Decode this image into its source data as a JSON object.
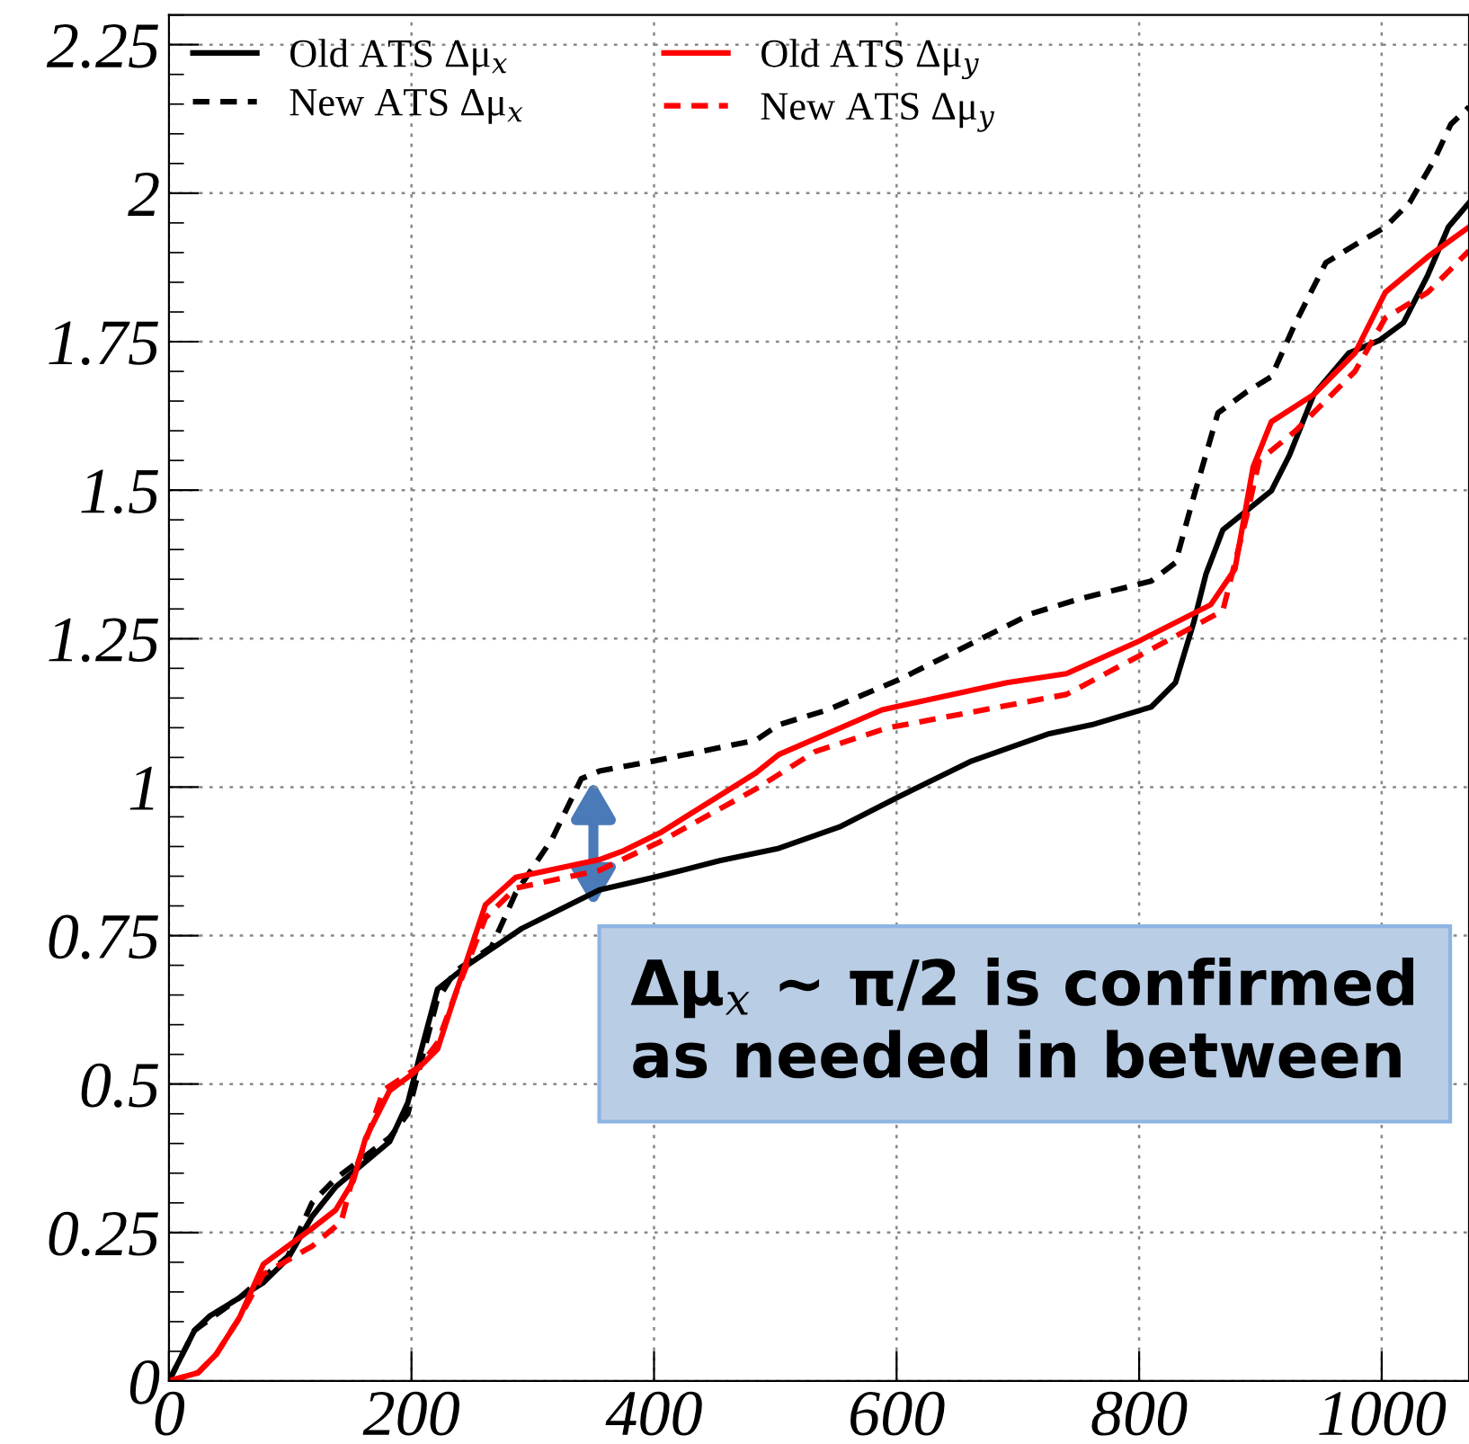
{
  "chart_data": {
    "type": "line",
    "xlim": [
      0,
      1072
    ],
    "ylim": [
      0,
      2.3
    ],
    "xticks": [
      0,
      200,
      400,
      600,
      800,
      1000
    ],
    "yticks": [
      0,
      0.25,
      0.5,
      0.75,
      1,
      1.25,
      1.5,
      1.75,
      2,
      2.25
    ],
    "grid": true,
    "legend": "top left",
    "marker": "none",
    "annotations": [
      "Δμ$_{x}$ ~ π/2 is confirmed\nas needed in between"
    ],
    "series": [
      {
        "name": "Old ATS Δμ$_{x}$",
        "color": "#000000",
        "line_style": "solid",
        "x": [
          0,
          21,
          34,
          58,
          78,
          98,
          118,
          137.5,
          182,
          197,
          207,
          221.5,
          246,
          291,
          355,
          400,
          454,
          503,
          553,
          602,
          662,
          726,
          761,
          810,
          830,
          845,
          855,
          869,
          909,
          924,
          944,
          973,
          998,
          1018,
          1038,
          1055,
          1072
        ],
        "values": [
          0,
          0.085,
          0.11,
          0.14,
          0.166,
          0.206,
          0.277,
          0.327,
          0.403,
          0.469,
          0.549,
          0.66,
          0.7,
          0.762,
          0.827,
          0.848,
          0.876,
          0.897,
          0.933,
          0.984,
          1.044,
          1.09,
          1.105,
          1.135,
          1.176,
          1.277,
          1.358,
          1.433,
          1.499,
          1.559,
          1.661,
          1.731,
          1.752,
          1.782,
          1.862,
          1.943,
          1.984
        ]
      },
      {
        "name": "New ATS Δμ$_{x}$",
        "color": "#000000",
        "line_style": "dashed",
        "x": [
          0,
          21,
          58,
          98,
          118,
          137,
          182,
          197,
          207,
          221,
          236,
          266,
          286,
          316,
          340,
          355,
          405,
          484,
          503,
          543,
          602,
          666,
          711,
          751,
          810,
          830,
          845,
          865,
          889,
          909,
          929,
          954,
          978,
          1003,
          1023,
          1043,
          1057,
          1072
        ],
        "values": [
          0,
          0.085,
          0.14,
          0.21,
          0.3,
          0.34,
          0.41,
          0.45,
          0.53,
          0.64,
          0.69,
          0.731,
          0.822,
          0.913,
          1.014,
          1.027,
          1.046,
          1.079,
          1.105,
          1.13,
          1.181,
          1.246,
          1.292,
          1.317,
          1.347,
          1.378,
          1.489,
          1.63,
          1.666,
          1.691,
          1.782,
          1.883,
          1.913,
          1.943,
          1.984,
          2.055,
          2.116,
          2.145
        ]
      },
      {
        "name": "Old ATS Δμ$_{y}$",
        "color": "#ff0000",
        "line_style": "solid",
        "x": [
          0,
          24,
          39,
          58,
          78,
          98,
          118,
          137.5,
          152,
          162,
          182,
          202,
          221.5,
          236,
          251,
          261,
          286,
          355,
          375,
          405,
          484,
          503,
          588,
          691,
          740,
          800,
          859,
          879,
          894,
          909,
          944,
          978,
          1003,
          1038,
          1072
        ],
        "values": [
          0,
          0.014,
          0.045,
          0.106,
          0.197,
          0.227,
          0.257,
          0.288,
          0.337,
          0.408,
          0.489,
          0.519,
          0.559,
          0.65,
          0.741,
          0.802,
          0.848,
          0.878,
          0.893,
          0.923,
          1.024,
          1.055,
          1.13,
          1.176,
          1.191,
          1.246,
          1.307,
          1.367,
          1.539,
          1.615,
          1.661,
          1.731,
          1.833,
          1.893,
          1.943
        ]
      },
      {
        "name": "New ATS Δμ$_{y}$",
        "color": "#ff0000",
        "line_style": "dashed",
        "x": [
          0,
          24,
          39,
          58,
          78,
          118,
          142,
          152,
          177,
          207,
          221.5,
          236,
          261,
          286,
          355,
          405,
          484,
          533,
          593,
          740,
          800,
          869,
          889,
          899,
          929,
          978,
          1003,
          1038,
          1072
        ],
        "values": [
          0,
          0.014,
          0.045,
          0.106,
          0.18,
          0.227,
          0.268,
          0.345,
          0.49,
          0.53,
          0.57,
          0.65,
          0.78,
          0.83,
          0.86,
          0.908,
          0.997,
          1.06,
          1.1,
          1.156,
          1.221,
          1.297,
          1.459,
          1.55,
          1.6,
          1.7,
          1.79,
          1.833,
          1.903
        ]
      }
    ]
  }
}
